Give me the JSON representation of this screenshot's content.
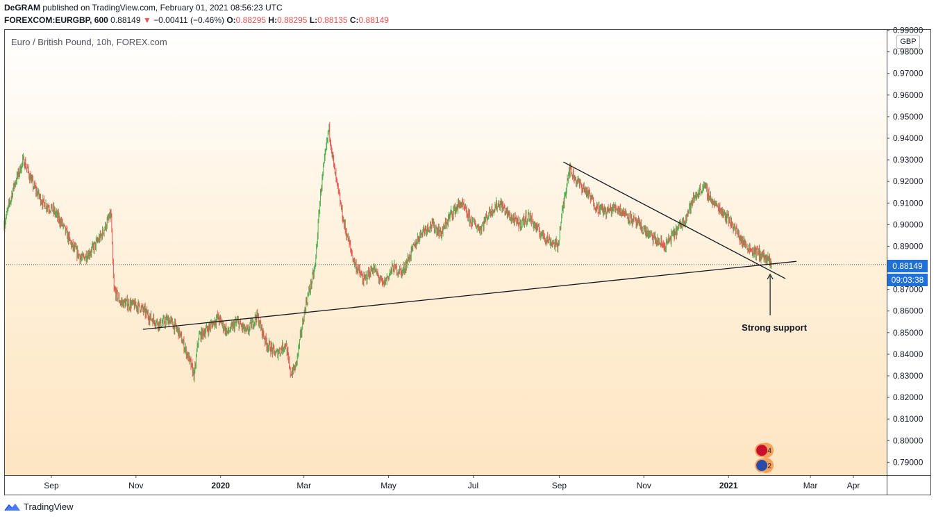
{
  "header": {
    "author": "DeGRAM",
    "published": "published on TradingView.com, February 01, 2021 08:56:23 UTC",
    "symbol": "FOREXCOM:EURGBP, 600",
    "last": "0.88149",
    "change_arrow": "▼",
    "change": "−0.00411 (−0.46%)",
    "o_label": "O:",
    "o": "0.88295",
    "h_label": "H:",
    "h": "0.88295",
    "l_label": "L:",
    "l": "0.88135",
    "c_label": "C:",
    "c": "0.88149"
  },
  "chart_title": "Euro / British Pound, 10h, FOREX.com",
  "currency": "GBP",
  "price_label": "0.88149",
  "countdown": "09:03:38",
  "annotation": "Strong support",
  "event_badges": [
    "4",
    "2"
  ],
  "brand": "TradingView",
  "colors": {
    "up": "#26a69a",
    "up_green": "#4caf50",
    "down": "#ef5350",
    "accent": "#1e6fd6",
    "line": "#131722"
  },
  "chart_data": {
    "type": "candlestick",
    "title": "Euro / British Pound, 10h, FOREX.com",
    "y_ticks": [
      "0.99000",
      "0.98000",
      "0.97000",
      "0.96000",
      "0.95000",
      "0.94000",
      "0.93000",
      "0.92000",
      "0.91000",
      "0.90000",
      "0.89000",
      "0.88000",
      "0.87000",
      "0.86000",
      "0.85000",
      "0.84000",
      "0.83000",
      "0.82000",
      "0.81000",
      "0.80000",
      "0.79000"
    ],
    "x_ticks": [
      "Sep",
      "Nov",
      "2020",
      "Mar",
      "May",
      "Jul",
      "Sep",
      "Nov",
      "2021",
      "Mar",
      "Apr"
    ],
    "ylim": [
      0.784,
      0.9905
    ],
    "x_range": [
      "2019-07-29",
      "2021-04-25"
    ],
    "current_price": 0.88149,
    "price_path": [
      [
        "2019-07-29",
        0.9
      ],
      [
        "2019-08-05",
        0.918
      ],
      [
        "2019-08-12",
        0.93
      ],
      [
        "2019-08-19",
        0.918
      ],
      [
        "2019-08-26",
        0.91
      ],
      [
        "2019-09-02",
        0.907
      ],
      [
        "2019-09-09",
        0.9
      ],
      [
        "2019-09-16",
        0.89
      ],
      [
        "2019-09-23",
        0.884
      ],
      [
        "2019-09-30",
        0.888
      ],
      [
        "2019-10-07",
        0.895
      ],
      [
        "2019-10-14",
        0.905
      ],
      [
        "2019-10-16",
        0.87
      ],
      [
        "2019-10-21",
        0.864
      ],
      [
        "2019-10-28",
        0.863
      ],
      [
        "2019-11-04",
        0.862
      ],
      [
        "2019-11-11",
        0.857
      ],
      [
        "2019-11-18",
        0.854
      ],
      [
        "2019-11-25",
        0.856
      ],
      [
        "2019-12-02",
        0.85
      ],
      [
        "2019-12-09",
        0.838
      ],
      [
        "2019-12-13",
        0.83
      ],
      [
        "2019-12-16",
        0.848
      ],
      [
        "2019-12-23",
        0.852
      ],
      [
        "2019-12-30",
        0.857
      ],
      [
        "2020-01-06",
        0.85
      ],
      [
        "2020-01-13",
        0.855
      ],
      [
        "2020-01-20",
        0.85
      ],
      [
        "2020-01-27",
        0.858
      ],
      [
        "2020-02-03",
        0.845
      ],
      [
        "2020-02-10",
        0.84
      ],
      [
        "2020-02-17",
        0.845
      ],
      [
        "2020-02-20",
        0.831
      ],
      [
        "2020-02-24",
        0.834
      ],
      [
        "2020-03-02",
        0.862
      ],
      [
        "2020-03-09",
        0.88
      ],
      [
        "2020-03-13",
        0.915
      ],
      [
        "2020-03-19",
        0.945
      ],
      [
        "2020-03-23",
        0.925
      ],
      [
        "2020-03-30",
        0.9
      ],
      [
        "2020-04-06",
        0.883
      ],
      [
        "2020-04-13",
        0.874
      ],
      [
        "2020-04-20",
        0.88
      ],
      [
        "2020-04-27",
        0.872
      ],
      [
        "2020-05-04",
        0.88
      ],
      [
        "2020-05-11",
        0.878
      ],
      [
        "2020-05-18",
        0.888
      ],
      [
        "2020-05-25",
        0.897
      ],
      [
        "2020-06-01",
        0.9
      ],
      [
        "2020-06-08",
        0.896
      ],
      [
        "2020-06-15",
        0.905
      ],
      [
        "2020-06-22",
        0.91
      ],
      [
        "2020-06-29",
        0.902
      ],
      [
        "2020-07-06",
        0.898
      ],
      [
        "2020-07-13",
        0.906
      ],
      [
        "2020-07-20",
        0.91
      ],
      [
        "2020-07-27",
        0.904
      ],
      [
        "2020-08-03",
        0.9
      ],
      [
        "2020-08-10",
        0.904
      ],
      [
        "2020-08-17",
        0.897
      ],
      [
        "2020-08-24",
        0.893
      ],
      [
        "2020-08-31",
        0.89
      ],
      [
        "2020-09-03",
        0.905
      ],
      [
        "2020-09-08",
        0.926
      ],
      [
        "2020-09-14",
        0.92
      ],
      [
        "2020-09-21",
        0.915
      ],
      [
        "2020-09-28",
        0.908
      ],
      [
        "2020-10-05",
        0.906
      ],
      [
        "2020-10-12",
        0.908
      ],
      [
        "2020-10-19",
        0.905
      ],
      [
        "2020-10-26",
        0.901
      ],
      [
        "2020-11-02",
        0.897
      ],
      [
        "2020-11-09",
        0.893
      ],
      [
        "2020-11-16",
        0.89
      ],
      [
        "2020-11-23",
        0.896
      ],
      [
        "2020-11-30",
        0.902
      ],
      [
        "2020-12-07",
        0.912
      ],
      [
        "2020-12-14",
        0.918
      ],
      [
        "2020-12-21",
        0.91
      ],
      [
        "2020-12-28",
        0.906
      ],
      [
        "2021-01-04",
        0.9
      ],
      [
        "2021-01-11",
        0.892
      ],
      [
        "2021-01-18",
        0.888
      ],
      [
        "2021-01-25",
        0.886
      ],
      [
        "2021-02-01",
        0.8815
      ]
    ],
    "trendlines": [
      {
        "name": "rising-support",
        "from": [
          "2019-11-06",
          0.8515
        ],
        "to": [
          "2021-02-19",
          0.883
        ]
      },
      {
        "name": "falling-resistance",
        "from": [
          "2020-09-04",
          0.929
        ],
        "to": [
          "2021-02-11",
          0.875
        ]
      }
    ],
    "annotation_arrow": {
      "date": "2021-01-31",
      "from_price": 0.858,
      "to_price": 0.877
    }
  }
}
